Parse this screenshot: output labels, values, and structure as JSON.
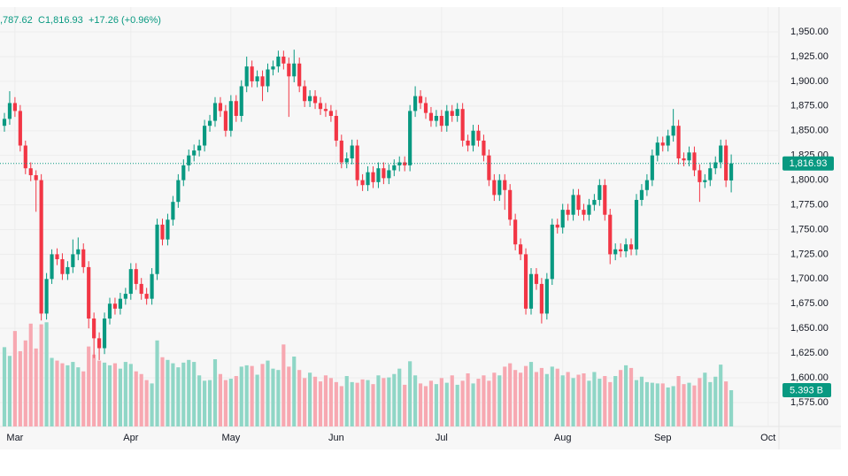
{
  "chart_data": {
    "type": "candlestick",
    "legend": {
      "low_label": ",787.62",
      "close_label": "C1,816.93",
      "change_label": "+17.26 (+0.96%)"
    },
    "last_price_label": "1,816.93",
    "volume_label": "5.393 B",
    "up_color": "#089981",
    "down_color": "#f23645",
    "volume_up_color": "#8fd6c6",
    "volume_down_color": "#f7a8b1",
    "grid": true,
    "xlim": [
      -0.84,
      147.06
    ],
    "xticks": [
      {
        "value": 2,
        "label": "Mar"
      },
      {
        "value": 24,
        "label": "Apr"
      },
      {
        "value": 43,
        "label": "May"
      },
      {
        "value": 63,
        "label": "Jun"
      },
      {
        "value": 83,
        "label": "Jul"
      },
      {
        "value": 106,
        "label": "Aug"
      },
      {
        "value": 125,
        "label": "Sep"
      },
      {
        "value": 145,
        "label": "Oct"
      }
    ],
    "ylim": [
      1550.8,
      1975.1
    ],
    "yticks": [
      {
        "value": 1575,
        "label": "1,575.00"
      },
      {
        "value": 1600,
        "label": "1,600.00"
      },
      {
        "value": 1625,
        "label": "1,625.00"
      },
      {
        "value": 1650,
        "label": "1,650.00"
      },
      {
        "value": 1675,
        "label": "1,675.00"
      },
      {
        "value": 1700,
        "label": "1,700.00"
      },
      {
        "value": 1725,
        "label": "1,725.00"
      },
      {
        "value": 1750,
        "label": "1,750.00"
      },
      {
        "value": 1775,
        "label": "1,775.00"
      },
      {
        "value": 1800,
        "label": "1,800.00"
      },
      {
        "value": 1825,
        "label": "1,825.00"
      },
      {
        "value": 1850,
        "label": "1,850.00"
      },
      {
        "value": 1875,
        "label": "1,875.00"
      },
      {
        "value": 1900,
        "label": "1,900.00"
      },
      {
        "value": 1925,
        "label": "1,925.00"
      },
      {
        "value": 1950,
        "label": "1,950.00"
      }
    ],
    "vlim": [
      0,
      62.4
    ],
    "open": [
      1855,
      1862,
      1878,
      1870,
      1835,
      1812,
      1805,
      1800,
      1665,
      1700,
      1725,
      1720,
      1705,
      1712,
      1725,
      1730,
      1712,
      1660,
      1640,
      1630,
      1660,
      1675,
      1670,
      1680,
      1685,
      1710,
      1695,
      1685,
      1680,
      1705,
      1755,
      1740,
      1760,
      1778,
      1800,
      1815,
      1825,
      1830,
      1835,
      1855,
      1860,
      1878,
      1870,
      1850,
      1880,
      1865,
      1895,
      1915,
      1900,
      1905,
      1895,
      1912,
      1915,
      1925,
      1918,
      1905,
      1918,
      1895,
      1880,
      1885,
      1878,
      1872,
      1870,
      1865,
      1840,
      1818,
      1822,
      1835,
      1800,
      1795,
      1808,
      1798,
      1812,
      1802,
      1810,
      1815,
      1818,
      1815,
      1870,
      1885,
      1878,
      1868,
      1860,
      1865,
      1855,
      1870,
      1865,
      1872,
      1840,
      1835,
      1850,
      1840,
      1825,
      1800,
      1785,
      1800,
      1790,
      1760,
      1735,
      1725,
      1670,
      1705,
      1695,
      1665,
      1700,
      1755,
      1752,
      1770,
      1765,
      1785,
      1770,
      1765,
      1775,
      1780,
      1795,
      1765,
      1725,
      1730,
      1728,
      1735,
      1730,
      1780,
      1790,
      1800,
      1825,
      1838,
      1835,
      1845,
      1855,
      1822,
      1820,
      1828,
      1810,
      1798,
      1800,
      1812,
      1818,
      1835,
      1799.67
    ],
    "high": [
      1868,
      1890,
      1884,
      1876,
      1840,
      1818,
      1810,
      1806,
      1706,
      1730,
      1731,
      1726,
      1718,
      1740,
      1742,
      1736,
      1718,
      1666,
      1646,
      1666,
      1681,
      1681,
      1686,
      1691,
      1716,
      1716,
      1701,
      1691,
      1711,
      1761,
      1761,
      1766,
      1784,
      1806,
      1821,
      1831,
      1836,
      1841,
      1861,
      1866,
      1884,
      1884,
      1876,
      1886,
      1886,
      1901,
      1925,
      1921,
      1911,
      1911,
      1918,
      1921,
      1931,
      1931,
      1924,
      1932,
      1924,
      1901,
      1891,
      1891,
      1884,
      1878,
      1876,
      1871,
      1846,
      1828,
      1841,
      1841,
      1806,
      1814,
      1814,
      1818,
      1818,
      1816,
      1821,
      1824,
      1824,
      1876,
      1895,
      1891,
      1884,
      1874,
      1871,
      1871,
      1876,
      1876,
      1878,
      1878,
      1846,
      1856,
      1856,
      1846,
      1831,
      1806,
      1806,
      1806,
      1796,
      1766,
      1741,
      1731,
      1711,
      1711,
      1701,
      1706,
      1761,
      1761,
      1776,
      1776,
      1791,
      1791,
      1776,
      1781,
      1786,
      1801,
      1801,
      1771,
      1736,
      1736,
      1741,
      1741,
      1786,
      1796,
      1806,
      1831,
      1844,
      1844,
      1851,
      1872,
      1861,
      1828,
      1834,
      1834,
      1816,
      1806,
      1818,
      1824,
      1841,
      1841,
      1826
    ],
    "low": [
      1849,
      1856,
      1864,
      1829,
      1806,
      1799,
      1768,
      1658,
      1659,
      1695,
      1714,
      1699,
      1699,
      1706,
      1719,
      1706,
      1650,
      1620,
      1618,
      1624,
      1654,
      1664,
      1664,
      1674,
      1679,
      1689,
      1679,
      1674,
      1674,
      1699,
      1734,
      1734,
      1754,
      1772,
      1794,
      1809,
      1819,
      1824,
      1829,
      1849,
      1854,
      1864,
      1844,
      1844,
      1859,
      1859,
      1889,
      1894,
      1894,
      1880,
      1889,
      1906,
      1909,
      1912,
      1864,
      1899,
      1889,
      1874,
      1874,
      1872,
      1866,
      1864,
      1859,
      1834,
      1812,
      1812,
      1816,
      1794,
      1789,
      1789,
      1792,
      1792,
      1796,
      1796,
      1804,
      1809,
      1809,
      1809,
      1864,
      1872,
      1862,
      1854,
      1854,
      1849,
      1849,
      1859,
      1859,
      1834,
      1829,
      1829,
      1834,
      1819,
      1794,
      1779,
      1779,
      1770,
      1754,
      1729,
      1719,
      1664,
      1664,
      1689,
      1655,
      1659,
      1694,
      1746,
      1746,
      1759,
      1759,
      1764,
      1759,
      1759,
      1769,
      1774,
      1759,
      1715,
      1719,
      1722,
      1722,
      1724,
      1724,
      1774,
      1784,
      1794,
      1819,
      1829,
      1829,
      1839,
      1816,
      1814,
      1814,
      1804,
      1778,
      1792,
      1794,
      1806,
      1812,
      1793,
      1787.62
    ],
    "close": [
      1862,
      1878,
      1870,
      1835,
      1812,
      1805,
      1800,
      1665,
      1700,
      1725,
      1720,
      1705,
      1712,
      1725,
      1730,
      1712,
      1660,
      1640,
      1630,
      1660,
      1675,
      1670,
      1680,
      1685,
      1710,
      1695,
      1685,
      1680,
      1705,
      1755,
      1740,
      1760,
      1778,
      1800,
      1815,
      1825,
      1830,
      1835,
      1855,
      1860,
      1878,
      1870,
      1850,
      1880,
      1865,
      1895,
      1915,
      1900,
      1905,
      1895,
      1912,
      1915,
      1925,
      1918,
      1905,
      1918,
      1895,
      1880,
      1885,
      1878,
      1872,
      1870,
      1865,
      1840,
      1818,
      1822,
      1835,
      1800,
      1795,
      1808,
      1798,
      1812,
      1802,
      1810,
      1815,
      1818,
      1815,
      1870,
      1885,
      1878,
      1868,
      1860,
      1865,
      1855,
      1870,
      1865,
      1872,
      1840,
      1835,
      1850,
      1840,
      1825,
      1800,
      1785,
      1800,
      1790,
      1760,
      1735,
      1725,
      1670,
      1705,
      1695,
      1665,
      1700,
      1755,
      1752,
      1770,
      1765,
      1785,
      1770,
      1765,
      1775,
      1780,
      1795,
      1765,
      1725,
      1730,
      1728,
      1735,
      1730,
      1780,
      1790,
      1800,
      1825,
      1838,
      1835,
      1845,
      1855,
      1822,
      1820,
      1828,
      1810,
      1798,
      1800,
      1812,
      1818,
      1835,
      1799.67,
      1816.93
    ],
    "volume": [
      11.8,
      10.5,
      14.2,
      11.2,
      12.8,
      15.3,
      11.6,
      15.2,
      15.5,
      10.2,
      9.8,
      9.4,
      9.1,
      9.6,
      8.8,
      8.2,
      11.9,
      10.7,
      9.8,
      9.5,
      9.1,
      9.4,
      8.6,
      9.6,
      9.3,
      8.2,
      7.8,
      6.9,
      6.4,
      12.8,
      10.3,
      9.9,
      9.4,
      8.8,
      9.5,
      9.9,
      9.6,
      7.6,
      6.8,
      6.9,
      10.0,
      7.8,
      6.9,
      7.1,
      7.5,
      8.9,
      9.1,
      9.0,
      7.7,
      9.3,
      9.8,
      8.6,
      8.4,
      12.2,
      8.9,
      10.4,
      8.4,
      7.2,
      8.0,
      7.4,
      6.7,
      7.6,
      7.2,
      6.6,
      6.0,
      7.5,
      6.6,
      6.5,
      7.0,
      6.9,
      6.3,
      7.6,
      7.2,
      7.3,
      7.8,
      8.6,
      6.2,
      9.7,
      7.6,
      6.4,
      6.0,
      6.8,
      6.3,
      7.2,
      6.5,
      7.6,
      6.2,
      6.8,
      7.9,
      6.4,
      7.1,
      7.6,
      6.8,
      8.0,
      7.6,
      8.9,
      9.4,
      8.4,
      8.0,
      9.0,
      9.6,
      8.1,
      8.7,
      7.8,
      8.9,
      8.6,
      7.6,
      8.1,
      7.2,
      7.7,
      7.9,
      6.8,
      8.1,
      7.1,
      7.5,
      6.6,
      7.5,
      8.4,
      9.1,
      8.7,
      6.9,
      7.4,
      6.6,
      6.5,
      6.4,
      6.4,
      5.8,
      6.0,
      7.5,
      6.3,
      6.5,
      6.1,
      7.2,
      8.0,
      6.6,
      7.4,
      9.2,
      6.7,
      5.393
    ]
  }
}
